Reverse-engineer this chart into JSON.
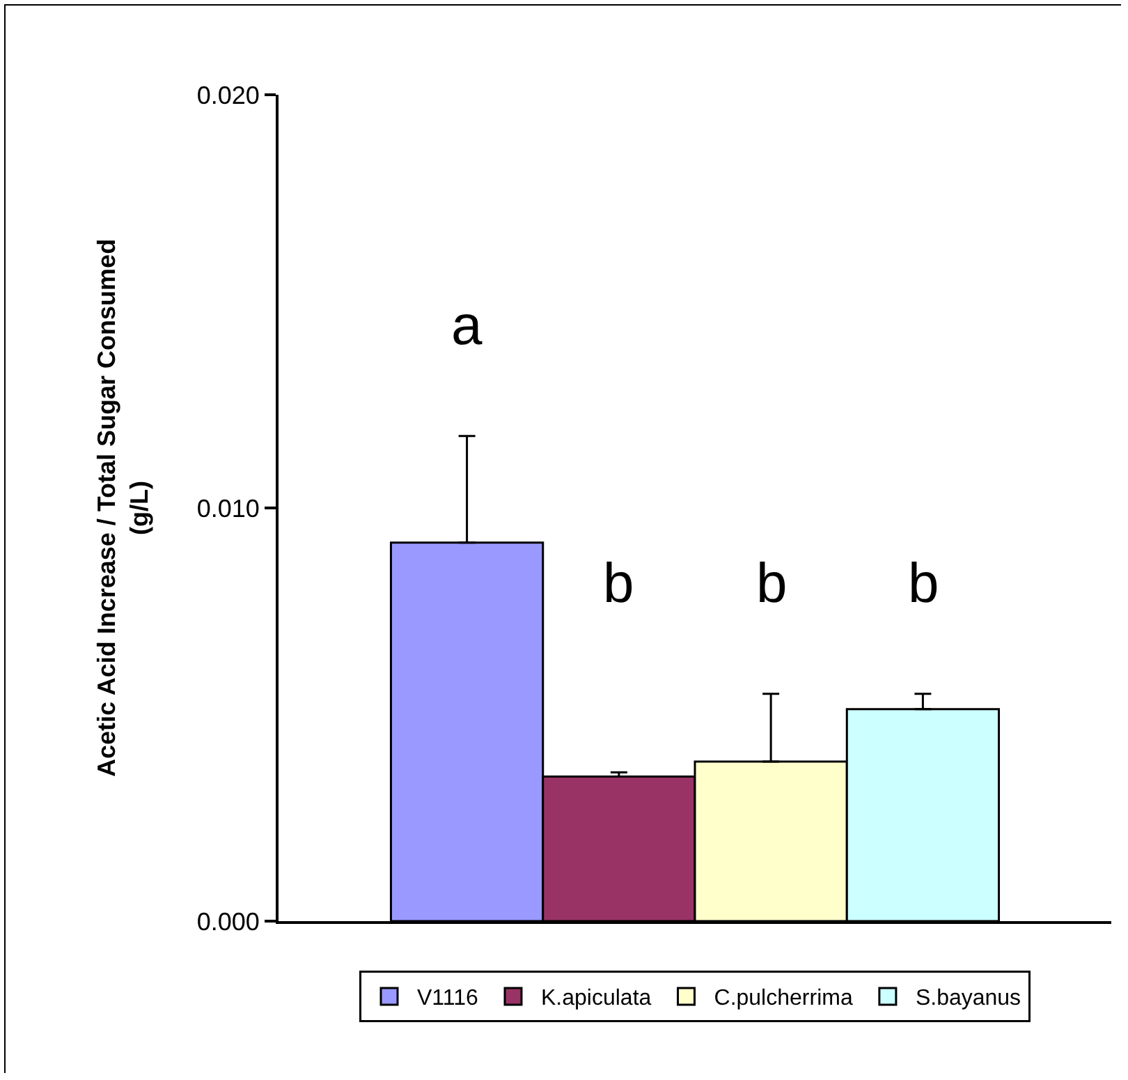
{
  "chart_data": {
    "type": "bar",
    "categories": [
      null
    ],
    "ylabel": "Acetic Acid Increase / Total Sugar Consumed (g/L)",
    "ylim": [
      0,
      0.02
    ],
    "yticks": [
      {
        "value": 0,
        "label": "0.000"
      },
      {
        "value": 0.01,
        "label": "0.010"
      },
      {
        "value": 0.02,
        "label": "0.020"
      }
    ],
    "grid": false,
    "legend": "bottom",
    "series": [
      {
        "name": "V1116",
        "color": "#9999ff",
        "values": [
          0.00916
        ],
        "errors": [
          [
            0.00916,
            0.01174
          ]
        ]
      },
      {
        "name": "K.apiculata",
        "color": "#993366",
        "values": [
          0.0035
        ],
        "errors": [
          [
            0.0035,
            0.0036
          ]
        ]
      },
      {
        "name": "C.pulcherrima",
        "color": "#ffffcc",
        "values": [
          0.00386
        ],
        "errors": [
          [
            0.00386,
            0.0055
          ]
        ]
      },
      {
        "name": "S.bayanus",
        "color": "#ccffff",
        "values": [
          0.00513
        ],
        "errors": [
          [
            0.00513,
            0.0055
          ]
        ]
      }
    ],
    "annotations": [
      "a",
      "b",
      "b",
      "b"
    ]
  }
}
